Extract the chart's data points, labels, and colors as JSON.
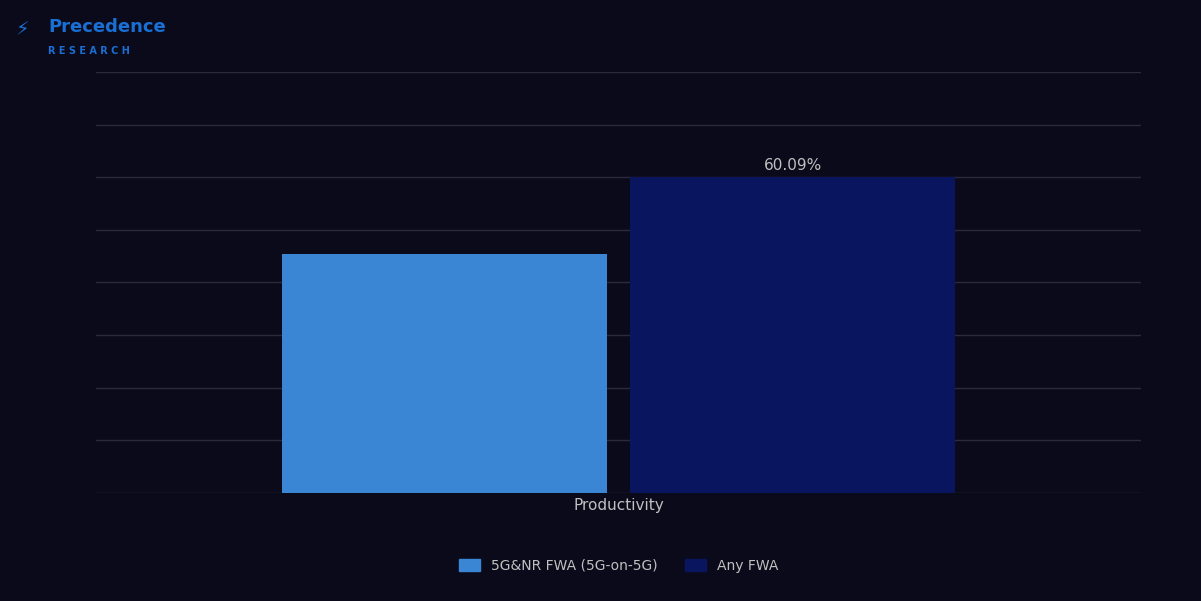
{
  "categories": [
    "Productivity"
  ],
  "bar1_label": "5G&NR FWA (5G-on-5G)",
  "bar2_label": "Any FWA",
  "bar1_value": 45.5,
  "bar2_value": 60.09,
  "bar1_color": "#3a86d4",
  "bar2_color": "#0a1560",
  "bar2_annotation": "60.09%",
  "background_color": "#0a0a1a",
  "plot_bg_color": "#0a0a1a",
  "grid_color": "#2a2a3a",
  "text_color": "#c0c0c0",
  "xlabel": "Productivity",
  "ylim": [
    0,
    80
  ],
  "bar_width": 0.28,
  "annotation_fontsize": 11,
  "label_fontsize": 11,
  "legend_fontsize": 10,
  "header_color": "#0d0d2b",
  "logo_text": "Precedence\nRESEARCH"
}
